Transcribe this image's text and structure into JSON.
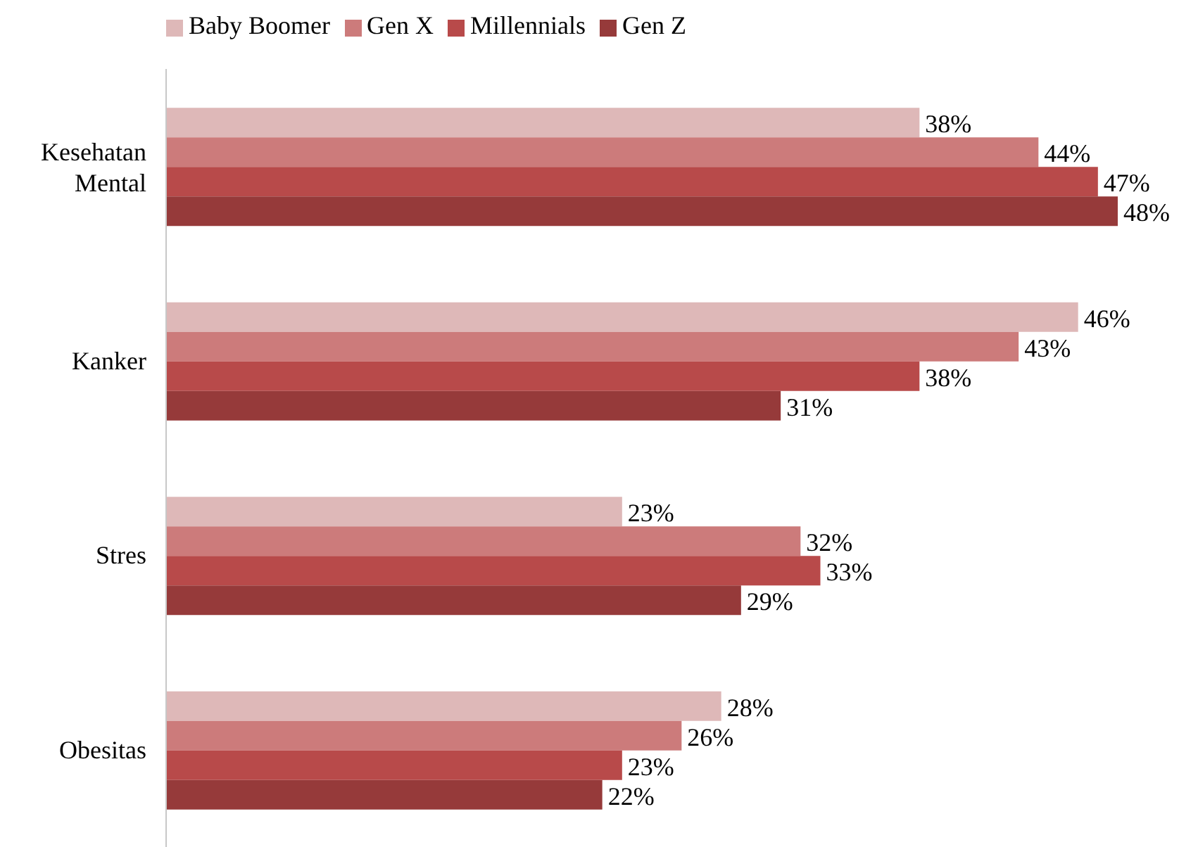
{
  "chart_data": {
    "type": "bar",
    "orientation": "horizontal",
    "categories": [
      "Kesehatan Mental",
      "Kanker",
      "Stres",
      "Obesitas"
    ],
    "series": [
      {
        "name": "Baby Boomer",
        "color": "#deb8b8",
        "values": [
          38,
          46,
          23,
          28
        ],
        "value_labels": [
          "38%",
          "46%",
          "23%",
          "28%"
        ]
      },
      {
        "name": "Gen X",
        "color": "#cc7b7b",
        "values": [
          44,
          43,
          32,
          26
        ],
        "value_labels": [
          "44%",
          "43%",
          "32%",
          "26%"
        ]
      },
      {
        "name": "Millennials",
        "color": "#b84a4a",
        "values": [
          47,
          38,
          33,
          23
        ],
        "value_labels": [
          "47%",
          "38%",
          "33%",
          "23%"
        ]
      },
      {
        "name": "Gen Z",
        "color": "#963a3a",
        "values": [
          48,
          31,
          29,
          22
        ],
        "value_labels": [
          "48%",
          "31%",
          "29%",
          "22%"
        ]
      }
    ],
    "legend": "top left",
    "grid": false
  }
}
